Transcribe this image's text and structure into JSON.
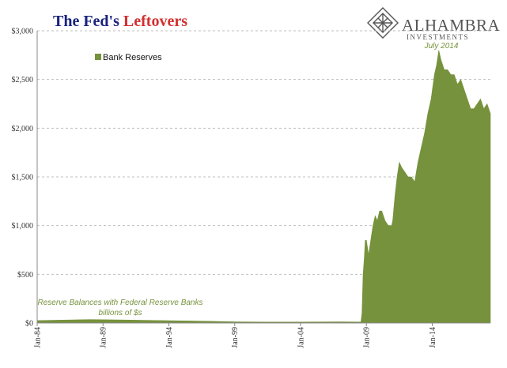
{
  "title": {
    "part1": "The Fed's ",
    "part2": "Leftovers",
    "color1": "#1a237e",
    "color2": "#d32f2f"
  },
  "logo": {
    "name": "ALHAMBRA",
    "sub": "INVESTMENTS",
    "icon": "alhambra-diamond-icon",
    "color": "#555555"
  },
  "colors": {
    "series": "#76923c",
    "annotation": "#76923c",
    "grid": "#bfbfbf"
  },
  "chart_data": {
    "type": "area",
    "title": "The Fed's Leftovers",
    "xlabel": "",
    "ylabel": "",
    "ylim": [
      0,
      3000
    ],
    "yticks": [
      0,
      500,
      1000,
      1500,
      2000,
      2500,
      3000
    ],
    "ytick_labels": [
      "$0",
      "$500",
      "$1,000",
      "$1,500",
      "$2,000",
      "$2,500",
      "$3,000"
    ],
    "x_range": [
      "1984-01",
      "2018-06"
    ],
    "xticks": [
      "Jan-84",
      "Jan-89",
      "Jan-94",
      "Jan-99",
      "Jan-04",
      "Jan-09",
      "Jan-14"
    ],
    "grid": "horizontal dashed",
    "legend": {
      "position": "top-left",
      "entries": [
        "Bank Reserves"
      ]
    },
    "annotations": [
      {
        "text": "Reserve Balances with Federal Reserve Banks",
        "near": "bottom-left"
      },
      {
        "text": "billions of $s",
        "near": "bottom-left"
      },
      {
        "text": "July 2014",
        "near": "peak"
      }
    ],
    "series": [
      {
        "name": "Bank Reserves",
        "x": [
          "1984-01",
          "1986-01",
          "1988-01",
          "1990-01",
          "1991-01",
          "1992-01",
          "1993-06",
          "1995-01",
          "1997-01",
          "1999-01",
          "2001-01",
          "2004-01",
          "2007-01",
          "2008-08",
          "2008-09",
          "2008-10",
          "2008-11",
          "2008-12",
          "2009-01",
          "2009-03",
          "2009-05",
          "2009-07",
          "2009-09",
          "2009-11",
          "2010-01",
          "2010-03",
          "2010-06",
          "2010-09",
          "2010-12",
          "2011-01",
          "2011-03",
          "2011-05",
          "2011-07",
          "2011-09",
          "2011-12",
          "2012-03",
          "2012-06",
          "2012-09",
          "2012-12",
          "2013-03",
          "2013-06",
          "2013-09",
          "2013-12",
          "2014-03",
          "2014-05",
          "2014-07",
          "2014-09",
          "2014-12",
          "2015-03",
          "2015-06",
          "2015-09",
          "2015-12",
          "2016-03",
          "2016-06",
          "2016-09",
          "2016-12",
          "2017-03",
          "2017-06",
          "2017-09",
          "2017-12",
          "2018-03",
          "2018-06"
        ],
        "values": [
          25,
          30,
          35,
          32,
          30,
          28,
          25,
          22,
          18,
          12,
          10,
          10,
          12,
          10,
          100,
          500,
          650,
          850,
          850,
          700,
          850,
          1000,
          1100,
          1050,
          1150,
          1150,
          1050,
          1000,
          1000,
          1050,
          1300,
          1500,
          1650,
          1600,
          1550,
          1500,
          1500,
          1450,
          1650,
          1800,
          1950,
          2150,
          2300,
          2550,
          2650,
          2800,
          2700,
          2600,
          2600,
          2550,
          2550,
          2450,
          2500,
          2400,
          2300,
          2200,
          2200,
          2250,
          2300,
          2200,
          2250,
          2150
        ]
      }
    ]
  }
}
